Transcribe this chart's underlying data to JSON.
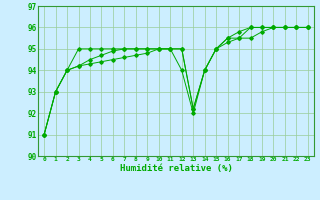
{
  "xlabel": "Humidité relative (%)",
  "bg_color": "#cceeff",
  "line_color": "#00aa00",
  "grid_color": "#99cc99",
  "spine_color": "#339933",
  "xlim": [
    -0.5,
    23.5
  ],
  "ylim": [
    90,
    97
  ],
  "yticks": [
    90,
    91,
    92,
    93,
    94,
    95,
    96,
    97
  ],
  "xticks": [
    0,
    1,
    2,
    3,
    4,
    5,
    6,
    7,
    8,
    9,
    10,
    11,
    12,
    13,
    14,
    15,
    16,
    17,
    18,
    19,
    20,
    21,
    22,
    23
  ],
  "line1": [
    91.0,
    93.0,
    94.0,
    95.0,
    95.0,
    95.0,
    95.0,
    95.0,
    95.0,
    95.0,
    95.0,
    95.0,
    94.0,
    92.0,
    94.0,
    95.0,
    95.5,
    95.5,
    96.0,
    96.0,
    96.0,
    96.0,
    96.0,
    96.0
  ],
  "line2": [
    91.0,
    93.0,
    94.0,
    94.2,
    94.3,
    94.4,
    94.5,
    94.6,
    94.7,
    94.8,
    95.0,
    95.0,
    95.0,
    92.2,
    94.0,
    95.0,
    95.5,
    95.8,
    96.0,
    96.0,
    96.0,
    96.0,
    96.0,
    96.0
  ],
  "line3": [
    91.0,
    93.0,
    94.0,
    94.2,
    94.5,
    94.7,
    94.9,
    95.0,
    95.0,
    95.0,
    95.0,
    95.0,
    95.0,
    92.2,
    94.0,
    95.0,
    95.3,
    95.5,
    95.5,
    95.8,
    96.0,
    96.0,
    96.0,
    96.0
  ]
}
